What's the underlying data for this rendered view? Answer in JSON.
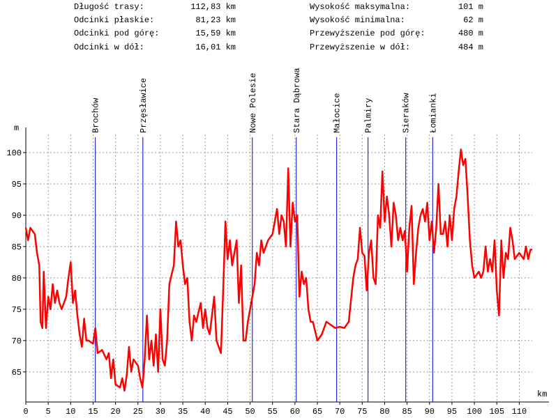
{
  "chart_data": {
    "type": "line",
    "stats_left": [
      {
        "label": "Długość trasy:",
        "value": "112,83 km"
      },
      {
        "label": "Odcinki płaskie:",
        "value": "81,23 km"
      },
      {
        "label": "Odcinki pod górę:",
        "value": "15,59 km"
      },
      {
        "label": "Odcinki w dół:",
        "value": "16,01 km"
      }
    ],
    "stats_right": [
      {
        "label": "Wysokość maksymalna:",
        "value": "101 m"
      },
      {
        "label": "Wysokość minimalna:",
        "value": "62 m"
      },
      {
        "label": "Przewyższenie pod górę:",
        "value": "480 m"
      },
      {
        "label": "Przewyższenie w dół:",
        "value": "484 m"
      }
    ],
    "y_label": "m",
    "x_label": "km",
    "xlim": [
      0,
      116
    ],
    "ylim": [
      60.2,
      104
    ],
    "xticks": [
      0,
      5,
      10,
      15,
      20,
      25,
      30,
      35,
      40,
      45,
      50,
      55,
      60,
      65,
      70,
      75,
      80,
      85,
      90,
      95,
      100,
      105,
      110
    ],
    "yticks": [
      65,
      70,
      75,
      80,
      85,
      90,
      95,
      100
    ],
    "grid": true,
    "color": "#ff0000",
    "places": [
      {
        "name": "Brochów",
        "km": 15.5
      },
      {
        "name": "Przęsławice",
        "km": 26.1
      },
      {
        "name": "Nowe Polesie",
        "km": 50.5
      },
      {
        "name": "Stara Dąbrowa",
        "km": 60.3
      },
      {
        "name": "Małocice",
        "km": 69.3
      },
      {
        "name": "Palmiry",
        "km": 76.3
      },
      {
        "name": "Sieraków",
        "km": 84.7
      },
      {
        "name": "Łomianki",
        "km": 90.7
      }
    ],
    "place_color": "#0000cc",
    "x": [
      0,
      0.5,
      1,
      2,
      2.5,
      3,
      3.3,
      3.7,
      4,
      4.5,
      5,
      5.5,
      6,
      6.5,
      7,
      7.5,
      8,
      9,
      9.5,
      10,
      10.5,
      11,
      11.5,
      12,
      12.5,
      13,
      13.5,
      14,
      15,
      15.5,
      16,
      17,
      18,
      18.5,
      19,
      19.5,
      20,
      21,
      21.5,
      22,
      22.5,
      23,
      23.5,
      24,
      25,
      25.5,
      26,
      26.5,
      27,
      27.5,
      28,
      28.5,
      29,
      29.5,
      30,
      30.5,
      31,
      31.5,
      32,
      33,
      33.5,
      34,
      34.5,
      35,
      35.5,
      36,
      36.5,
      37,
      37.5,
      38,
      39,
      39.5,
      40,
      40.5,
      41,
      42,
      42.5,
      43,
      43.5,
      44,
      44.5,
      45,
      45.5,
      46,
      46.5,
      47,
      47.5,
      48,
      48.5,
      49,
      49.5,
      50,
      51,
      51.5,
      52,
      52.5,
      53,
      54,
      55,
      56,
      56.5,
      57,
      57.5,
      58,
      58.5,
      59,
      59.5,
      60,
      60.5,
      61,
      61.5,
      62,
      62.5,
      63,
      63.5,
      64,
      65,
      65.5,
      66,
      67,
      68,
      69,
      70,
      71,
      72,
      73,
      73.5,
      74,
      74.5,
      75,
      75.5,
      76,
      76.5,
      77,
      77.5,
      78,
      78.5,
      79,
      79.5,
      80,
      80.5,
      81,
      81.5,
      82,
      82.5,
      83,
      83.5,
      84,
      84.5,
      85,
      85.5,
      86,
      86.5,
      87,
      87.5,
      88,
      88.5,
      89,
      89.5,
      90,
      90.5,
      91,
      91.5,
      92,
      92.5,
      93,
      93.5,
      94,
      94.5,
      95,
      95.5,
      96,
      96.5,
      97,
      97.5,
      98,
      98.5,
      99,
      99.5,
      100,
      101,
      101.5,
      102,
      102.5,
      103,
      103.5,
      104,
      104.5,
      105,
      105.5,
      106,
      106.5,
      107,
      107.5,
      108,
      108.5,
      109,
      110,
      111,
      111.5,
      112,
      112.5,
      112.9
    ],
    "values": [
      88,
      86,
      88,
      87,
      84,
      82,
      73,
      72,
      81,
      72,
      77,
      75,
      79,
      76,
      78,
      76,
      75,
      77,
      80,
      82.5,
      76,
      78,
      74,
      71,
      69,
      73.5,
      70,
      70,
      69.5,
      72,
      68,
      68.5,
      67,
      68,
      64,
      67,
      63,
      62.5,
      64,
      62,
      64.5,
      69,
      65,
      67,
      66,
      64,
      62.5,
      67,
      74,
      67,
      70,
      66,
      71,
      65,
      75,
      67,
      66,
      70,
      79,
      82,
      89,
      85,
      86,
      82,
      79,
      80,
      73,
      70,
      74,
      73,
      76,
      72,
      75,
      72,
      71,
      77,
      70,
      69,
      68,
      78,
      89,
      83,
      86,
      82,
      84,
      86,
      76,
      82,
      70,
      70,
      73,
      75,
      79,
      84,
      82,
      86,
      84,
      86,
      87,
      91,
      87,
      90,
      89,
      85,
      97.5,
      85,
      92,
      89,
      90,
      77,
      81,
      79,
      80,
      75,
      73,
      73,
      70,
      70.5,
      71,
      73,
      72.5,
      72,
      72.2,
      72,
      73,
      80,
      82,
      83,
      88,
      84,
      83.5,
      78,
      84,
      86,
      80,
      79,
      90,
      88,
      97,
      89,
      93,
      90,
      85,
      92,
      90,
      86,
      88,
      86,
      87.5,
      81,
      88,
      91.5,
      79,
      84,
      88,
      90,
      91,
      89,
      92,
      86,
      89,
      84,
      88,
      95,
      87,
      87,
      89,
      85,
      90,
      86,
      91,
      93,
      97,
      100.5,
      98,
      99,
      93,
      86,
      82,
      80,
      81,
      80,
      81,
      85,
      81,
      83,
      81,
      86,
      78,
      74,
      86,
      80,
      84,
      83,
      88,
      86,
      83,
      84,
      83,
      85,
      83,
      84.5,
      84.5
    ]
  }
}
